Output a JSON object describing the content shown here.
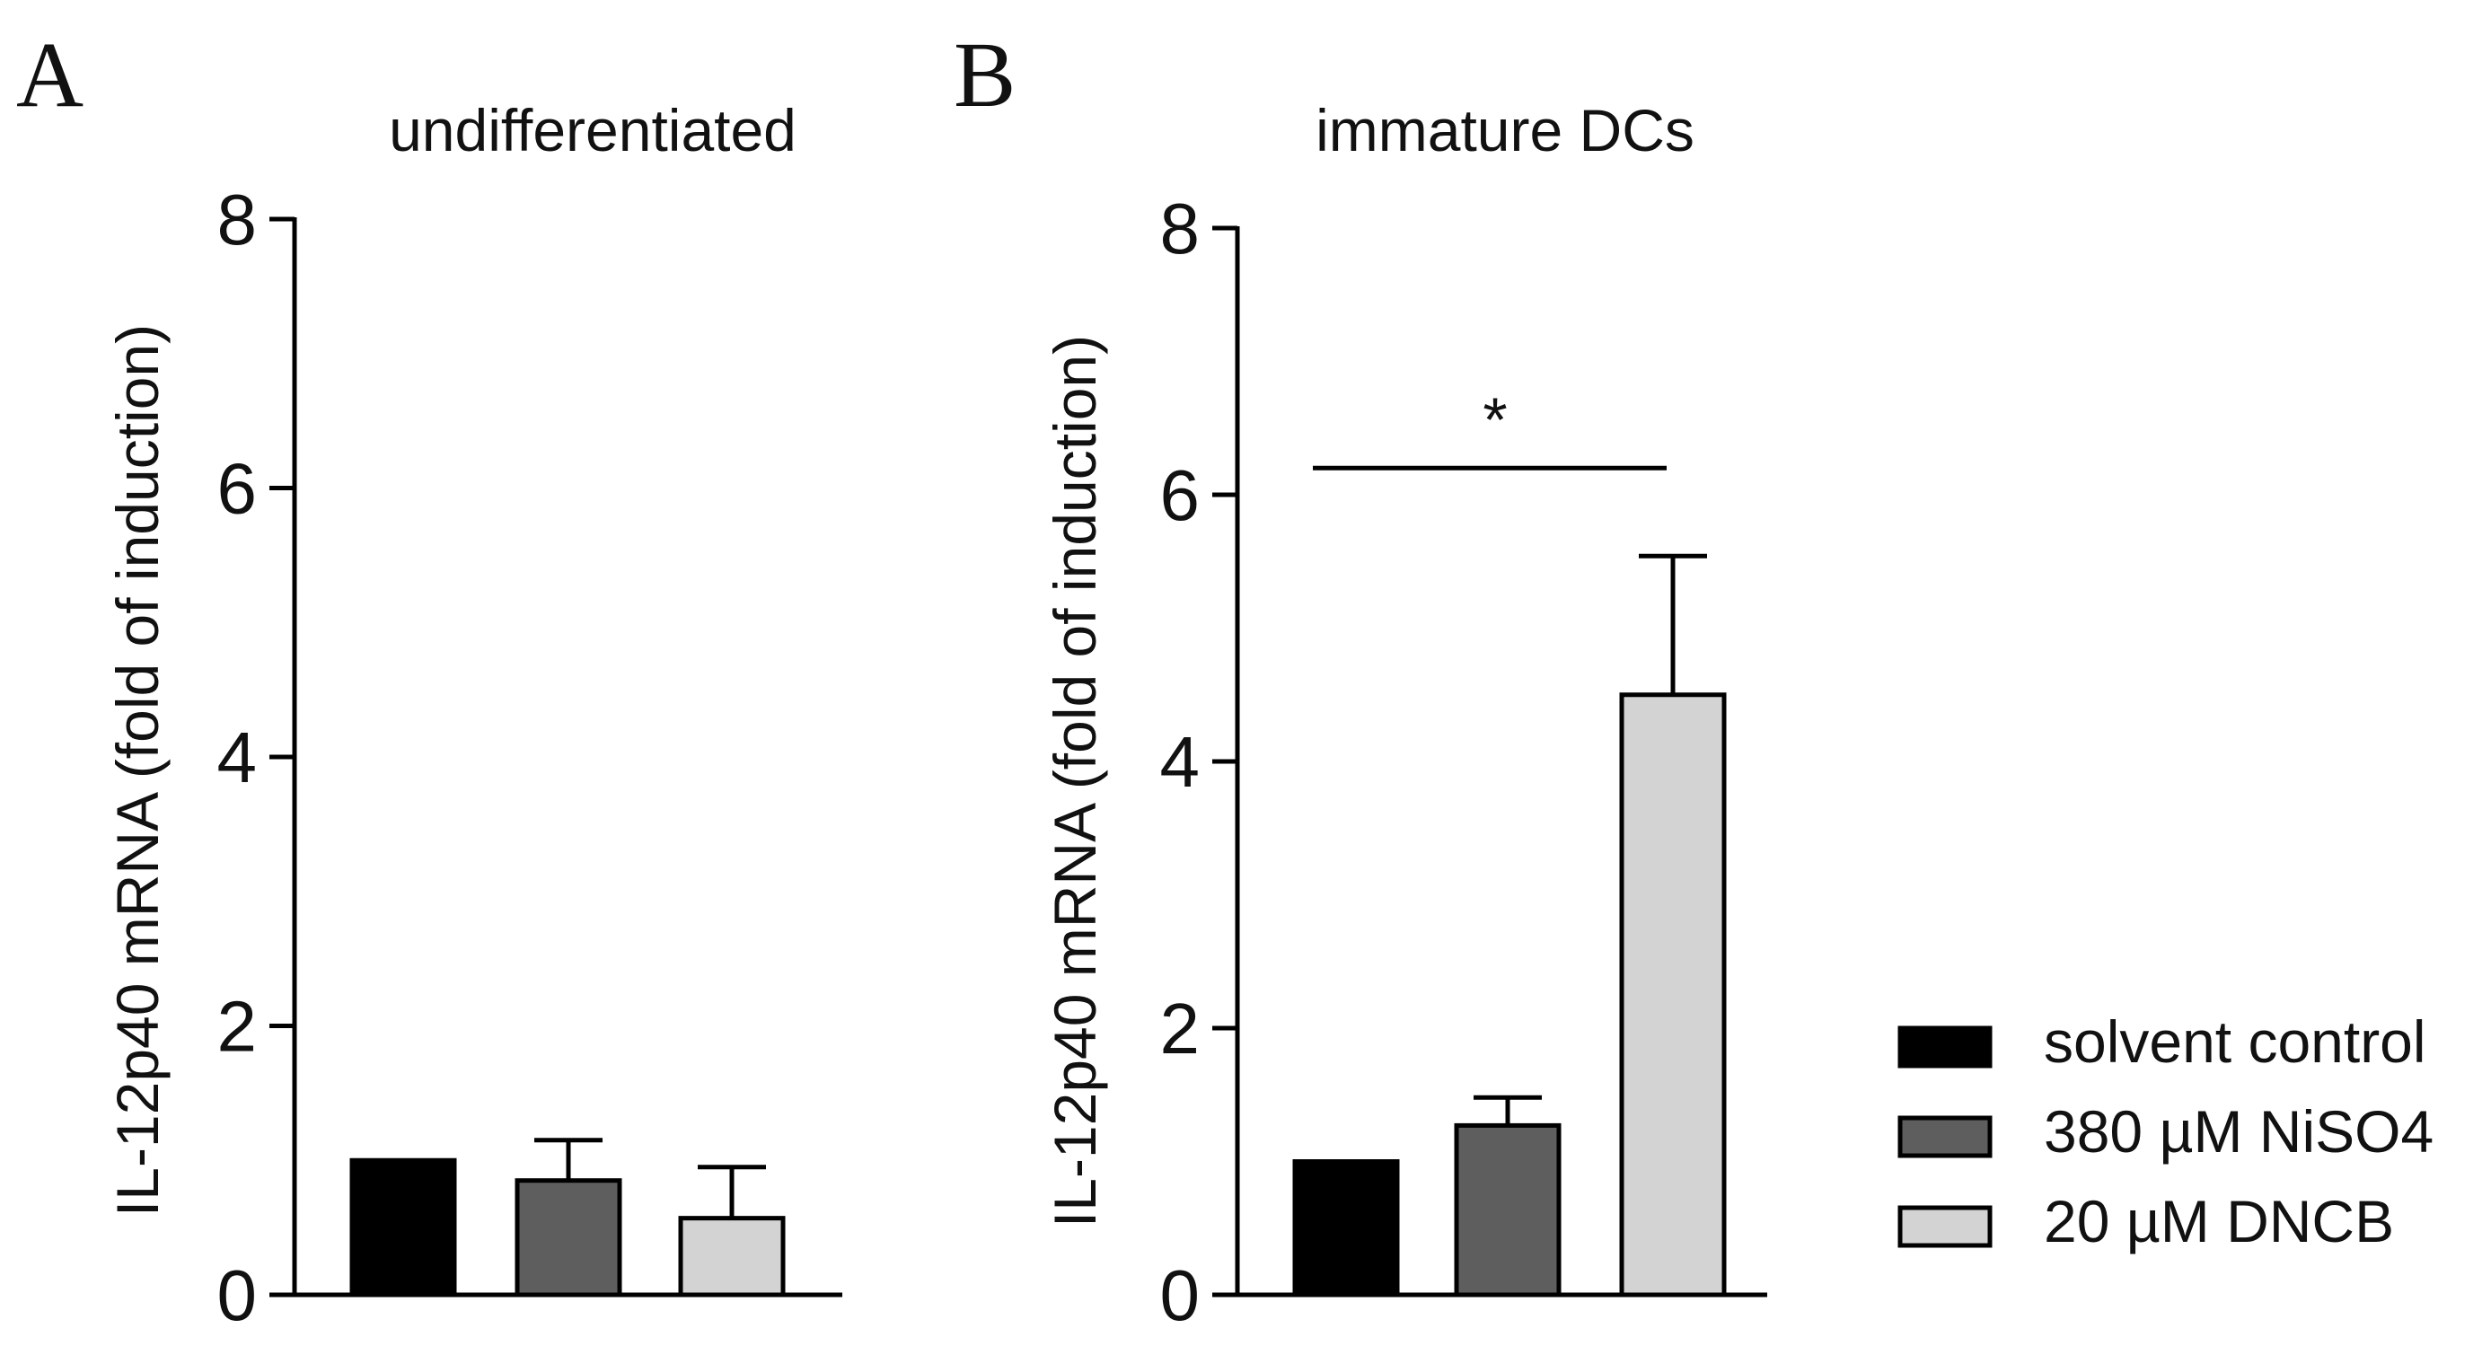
{
  "chart_data": [
    {
      "type": "bar",
      "panel_label": "A",
      "title": "undifferentiated",
      "ylabel": "IL-12p40 mRNA (fold of induction)",
      "xlabel": "",
      "ylim": [
        0,
        8
      ],
      "yticks": [
        "0",
        "2",
        "4",
        "6",
        "8"
      ],
      "categories": [
        "solvent control",
        "380 µM NiSO4",
        "20 µM DNCB"
      ],
      "values": [
        1.0,
        0.85,
        0.57
      ],
      "errors": [
        0.0,
        0.3,
        0.38
      ],
      "colors": [
        "#000000",
        "#5e5e5e",
        "#d3d3d3"
      ],
      "annotations": []
    },
    {
      "type": "bar",
      "panel_label": "B",
      "title": "immature DCs",
      "ylabel": "IL-12p40 mRNA (fold of induction)",
      "xlabel": "",
      "ylim": [
        0,
        8
      ],
      "yticks": [
        "0",
        "2",
        "4",
        "6",
        "8"
      ],
      "categories": [
        "solvent control",
        "380 µM NiSO4",
        "20 µM DNCB"
      ],
      "values": [
        1.0,
        1.27,
        4.5
      ],
      "errors": [
        0.0,
        0.21,
        1.04
      ],
      "colors": [
        "#000000",
        "#5e5e5e",
        "#d3d3d3"
      ],
      "annotations": [
        {
          "text": "*",
          "from_category": 0,
          "to_category": 2,
          "y": 6.2
        }
      ]
    }
  ],
  "legend": {
    "position": "right",
    "items": [
      {
        "label": "solvent control",
        "color": "#000000"
      },
      {
        "label": "380 µM NiSO4",
        "color": "#5e5e5e"
      },
      {
        "label": "20 µM DNCB",
        "color": "#d3d3d3"
      }
    ]
  }
}
